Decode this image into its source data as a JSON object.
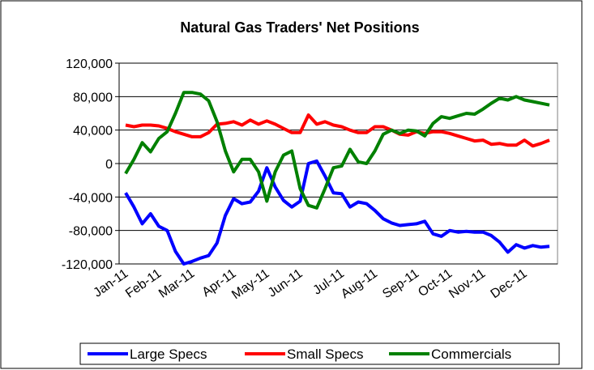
{
  "chart_data": {
    "type": "line",
    "title": "Natural Gas Traders' Net Positions",
    "categories": [
      "Jan-11",
      null,
      null,
      null,
      "Feb-11",
      null,
      null,
      null,
      "Mar-11",
      null,
      null,
      null,
      null,
      "Apr-11",
      null,
      null,
      null,
      "May-11",
      null,
      null,
      null,
      "Jun-11",
      null,
      null,
      null,
      null,
      "Jul-11",
      null,
      null,
      null,
      "Aug-11",
      null,
      null,
      null,
      null,
      "Sep-11",
      null,
      null,
      null,
      "Oct-11",
      null,
      null,
      null,
      "Nov-11",
      null,
      null,
      null,
      null,
      "Dec-11",
      null,
      null,
      null
    ],
    "series": [
      {
        "name": "Large Specs",
        "color": "#0000ff",
        "values": [
          -35000,
          -52000,
          -72000,
          -60000,
          -75000,
          -80000,
          -105000,
          -120000,
          -117000,
          -113000,
          -110000,
          -95000,
          -62000,
          -42000,
          -48000,
          -46000,
          -33000,
          -5000,
          -28000,
          -44000,
          -52000,
          -45000,
          0,
          3000,
          -15000,
          -35000,
          -36000,
          -52000,
          -46000,
          -48000,
          -56000,
          -66000,
          -71000,
          -74000,
          -73000,
          -72000,
          -69000,
          -84000,
          -87000,
          -80000,
          -82000,
          -81000,
          -82000,
          -82000,
          -86000,
          -94000,
          -106000,
          -97000,
          -101000,
          -98000,
          -100000,
          -99000
        ]
      },
      {
        "name": "Small Specs",
        "color": "#ff0000",
        "values": [
          46000,
          44000,
          46000,
          46000,
          45000,
          42000,
          38000,
          35000,
          32000,
          32000,
          37000,
          47000,
          48000,
          50000,
          46000,
          52000,
          47000,
          51000,
          47000,
          42000,
          37000,
          37000,
          58000,
          47000,
          50000,
          46000,
          44000,
          40000,
          37000,
          37000,
          44000,
          44000,
          40000,
          35000,
          34000,
          38000,
          36000,
          38000,
          38000,
          36000,
          33000,
          30000,
          27000,
          28000,
          23000,
          24000,
          22000,
          22000,
          28000,
          21000,
          24000,
          28000
        ]
      },
      {
        "name": "Commercials",
        "color": "#008000",
        "values": [
          -12000,
          5000,
          25000,
          14000,
          30000,
          38000,
          60000,
          85000,
          85000,
          83000,
          75000,
          50000,
          15000,
          -10000,
          5000,
          5000,
          -10000,
          -45000,
          -10000,
          10000,
          15000,
          -30000,
          -50000,
          -53000,
          -30000,
          -5000,
          -3000,
          17000,
          2000,
          0,
          15000,
          35000,
          40000,
          36000,
          40000,
          39000,
          33000,
          48000,
          56000,
          54000,
          57000,
          60000,
          59000,
          65000,
          72000,
          78000,
          76000,
          80000,
          76000,
          74000,
          72000,
          70000
        ]
      }
    ],
    "ylim": [
      -120000,
      120000
    ],
    "yticks": [
      {
        "value": -120000,
        "label": "-120,000"
      },
      {
        "value": -80000,
        "label": "-80,000"
      },
      {
        "value": -40000,
        "label": "-40,000"
      },
      0,
      {
        "value": 40000,
        "label": "40,000"
      },
      {
        "value": 80000,
        "label": "80,000"
      },
      {
        "value": 120000,
        "label": "120,000"
      }
    ],
    "grid": true,
    "legend": "bottom"
  }
}
